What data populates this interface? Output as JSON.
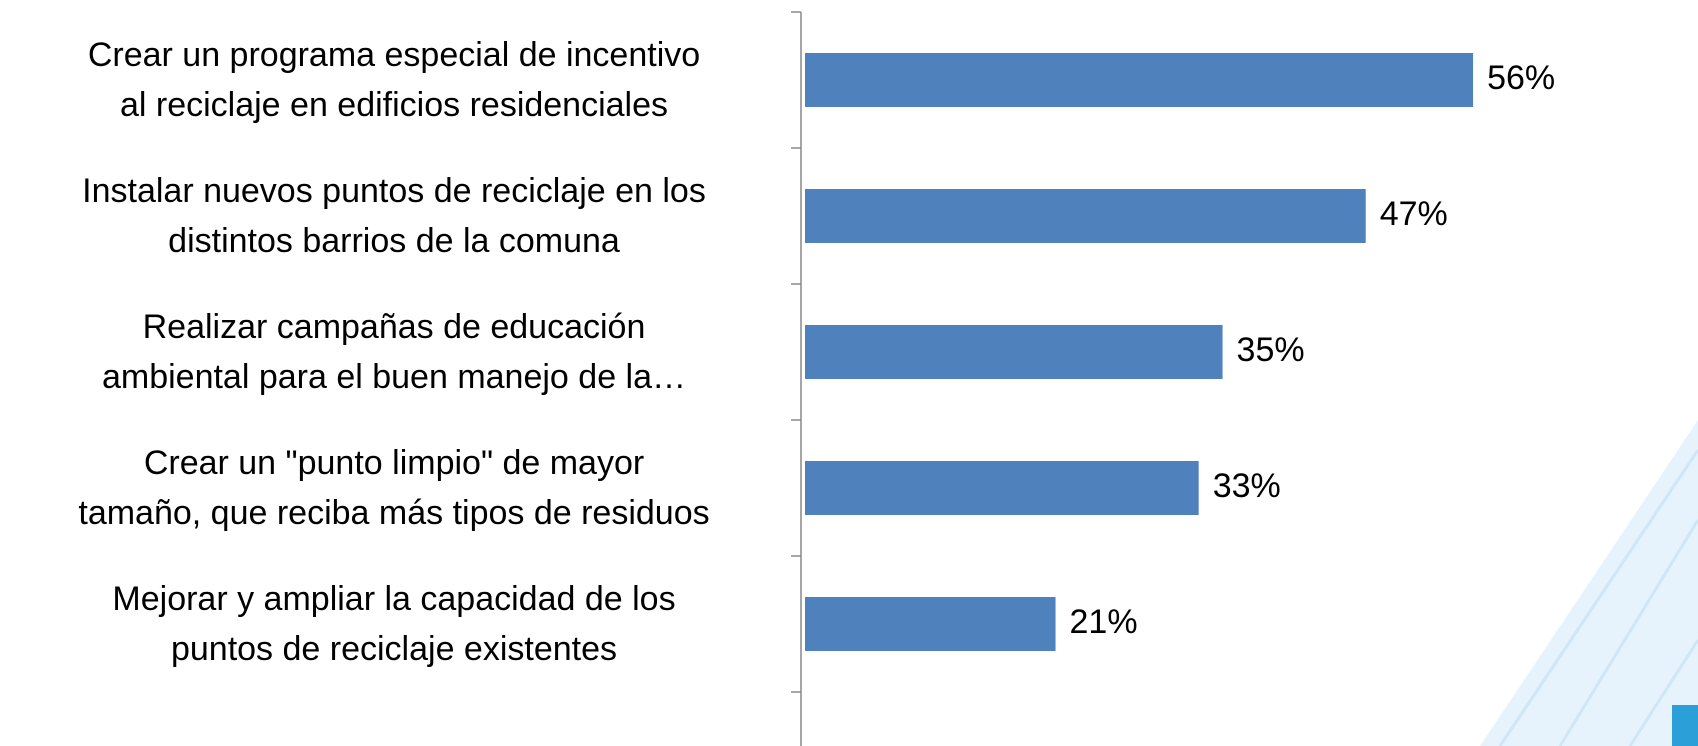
{
  "chart_data": {
    "type": "bar",
    "orientation": "horizontal",
    "categories": [
      "Crear un programa especial de incentivo\nal reciclaje en edificios residenciales",
      "Instalar nuevos puntos de reciclaje en los\ndistintos barrios de la comuna",
      "Realizar campañas de educación\nambiental para el buen manejo de la…",
      "Crear un \"punto limpio\" de mayor\ntamaño, que reciba más tipos de residuos",
      "Mejorar y ampliar la capacidad de los\npuntos de reciclaje existentes"
    ],
    "values": [
      56,
      47,
      35,
      33,
      21
    ],
    "value_labels": [
      "56%",
      "47%",
      "35%",
      "33%",
      "21%"
    ],
    "color": "#4f81bd"
  }
}
